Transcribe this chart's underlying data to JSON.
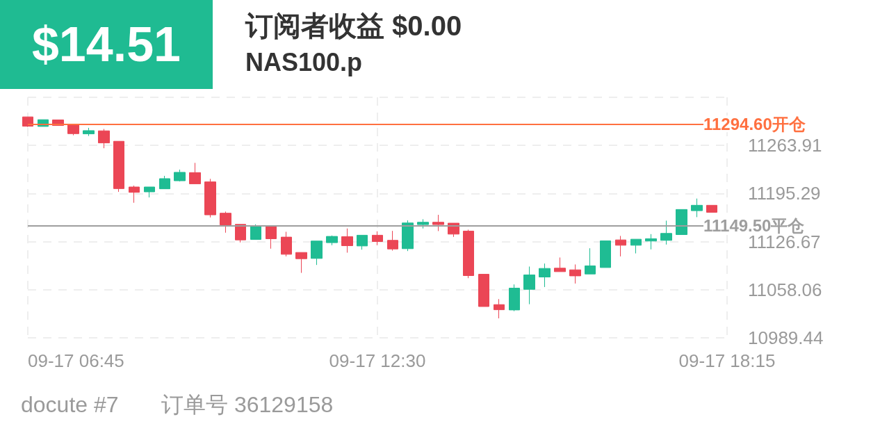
{
  "chart_data": {
    "type": "candlestick",
    "title": "订阅者收益 $0.00",
    "subtitle": "NAS100.p",
    "annotations": [
      "$14.51",
      "docute #7",
      "订单号 36129158"
    ],
    "x": [
      "--09-17T06:45",
      "--09-17T07:00",
      "--09-17T07:15",
      "--09-17T07:30",
      "--09-17T07:45",
      "--09-17T08:00",
      "--09-17T08:15",
      "--09-17T08:30",
      "--09-17T08:45",
      "--09-17T09:00",
      "--09-17T09:15",
      "--09-17T09:30",
      "--09-17T09:45",
      "--09-17T10:00",
      "--09-17T10:15",
      "--09-17T10:30",
      "--09-17T10:45",
      "--09-17T11:00",
      "--09-17T11:15",
      "--09-17T11:30",
      "--09-17T11:45",
      "--09-17T12:00",
      "--09-17T12:15",
      "--09-17T12:30",
      "--09-17T12:45",
      "--09-17T13:00",
      "--09-17T13:15",
      "--09-17T13:30",
      "--09-17T13:45",
      "--09-17T14:00",
      "--09-17T14:15",
      "--09-17T14:30",
      "--09-17T14:45",
      "--09-17T15:00",
      "--09-17T15:15",
      "--09-17T15:30",
      "--09-17T15:45",
      "--09-17T16:00",
      "--09-17T16:15",
      "--09-17T16:30",
      "--09-17T16:45",
      "--09-17T17:00",
      "--09-17T17:15",
      "--09-17T17:30",
      "--09-17T17:45",
      "--09-17T18:00"
    ],
    "ohlc": [
      [
        11304.6,
        11304.6,
        11290.3,
        11291.3
      ],
      [
        11291.0,
        11300.6,
        11291.0,
        11300.6
      ],
      [
        11300.3,
        11300.3,
        11292.3,
        11292.3
      ],
      [
        11293.6,
        11293.6,
        11278.4,
        11280.7
      ],
      [
        11280.4,
        11289.0,
        11277.4,
        11285.0
      ],
      [
        11284.7,
        11287.4,
        11259.9,
        11267.5
      ],
      [
        11269.8,
        11269.8,
        11197.7,
        11202.3
      ],
      [
        11204.6,
        11206.6,
        11182.1,
        11197.0
      ],
      [
        11197.7,
        11204.6,
        11189.7,
        11204.6
      ],
      [
        11202.0,
        11220.5,
        11202.0,
        11216.5
      ],
      [
        11213.5,
        11229.4,
        11212.5,
        11225.5
      ],
      [
        11225.1,
        11239.0,
        11209.2,
        11209.2
      ],
      [
        11211.9,
        11216.2,
        11161.2,
        11164.9
      ],
      [
        11167.2,
        11169.5,
        11139.4,
        11150.6
      ],
      [
        11151.3,
        11151.3,
        11125.5,
        11129.1
      ],
      [
        11129.8,
        11151.3,
        11129.8,
        11148.0
      ],
      [
        11148.0,
        11148.0,
        11116.6,
        11130.8
      ],
      [
        11133.1,
        11140.7,
        11105.6,
        11108.6
      ],
      [
        11111.2,
        11111.2,
        11082.1,
        11102.3
      ],
      [
        11102.7,
        11127.5,
        11093.4,
        11127.5
      ],
      [
        11125.2,
        11135.4,
        11121.5,
        11134.1
      ],
      [
        11133.8,
        11145.4,
        11110.9,
        11120.9
      ],
      [
        11120.5,
        11135.8,
        11115.2,
        11135.8
      ],
      [
        11135.8,
        11141.4,
        11121.5,
        11126.8
      ],
      [
        11128.5,
        11142.0,
        11113.9,
        11116.2
      ],
      [
        11116.6,
        11157.0,
        11113.2,
        11153.3
      ],
      [
        11151.0,
        11158.6,
        11145.4,
        11154.3
      ],
      [
        11154.3,
        11164.9,
        11141.7,
        11151.0
      ],
      [
        11153.0,
        11153.0,
        11133.4,
        11137.4
      ],
      [
        11141.7,
        11143.7,
        11074.5,
        11078.2
      ],
      [
        11080.1,
        11080.1,
        11034.1,
        11034.1
      ],
      [
        11036.8,
        11044.7,
        11017.2,
        11029.5
      ],
      [
        11029.2,
        11065.6,
        11027.5,
        11060.3
      ],
      [
        11058.6,
        11091.1,
        11037.4,
        11079.2
      ],
      [
        11076.2,
        11095.4,
        11061.9,
        11088.4
      ],
      [
        11088.8,
        11104.0,
        11083.8,
        11083.8
      ],
      [
        11086.4,
        11094.1,
        11066.9,
        11077.8
      ],
      [
        11080.5,
        11117.2,
        11080.5,
        11092.1
      ],
      [
        11089.7,
        11127.8,
        11089.7,
        11127.8
      ],
      [
        11129.1,
        11134.8,
        11105.6,
        11121.5
      ],
      [
        11121.5,
        11130.1,
        11109.9,
        11130.1
      ],
      [
        11127.5,
        11137.4,
        11115.6,
        11130.8
      ],
      [
        11128.5,
        11156.6,
        11122.5,
        11138.4
      ],
      [
        11136.7,
        11172.5,
        11136.7,
        11172.5
      ],
      [
        11170.8,
        11188.1,
        11161.6,
        11178.5
      ],
      [
        11178.5,
        11178.5,
        11168.5,
        11168.5
      ]
    ],
    "colors": [
      "#eb4655",
      "#1fbc93",
      "#eb4655",
      "#eb4655",
      "#1fbc93",
      "#eb4655",
      "#eb4655",
      "#eb4655",
      "#1fbc93",
      "#1fbc93",
      "#1fbc93",
      "#eb4655",
      "#eb4655",
      "#eb4655",
      "#eb4655",
      "#1fbc93",
      "#eb4655",
      "#eb4655",
      "#eb4655",
      "#1fbc93",
      "#1fbc93",
      "#eb4655",
      "#1fbc93",
      "#eb4655",
      "#eb4655",
      "#1fbc93",
      "#1fbc93",
      "#eb4655",
      "#eb4655",
      "#eb4655",
      "#eb4655",
      "#eb4655",
      "#1fbc93",
      "#1fbc93",
      "#1fbc93",
      "#eb4655",
      "#eb4655",
      "#1fbc93",
      "#1fbc93",
      "#eb4655",
      "#1fbc93",
      "#1fbc93",
      "#1fbc93",
      "#1fbc93",
      "#1fbc93",
      "#eb4655"
    ],
    "xlim": [
      "--09-17T06:45",
      "--09-17T18:15"
    ],
    "xticks": [
      {
        "value": "--09-17T06:45",
        "label": "09-17 06:45"
      },
      {
        "value": "--09-17T12:30",
        "label": "09-17 12:30"
      },
      {
        "value": "--09-17T18:15",
        "label": "09-17 18:15"
      }
    ],
    "ylim": [
      10989.44,
      11332.53
    ],
    "yticks": [
      10989.44,
      11058.06,
      11126.67,
      11195.29,
      11263.91,
      {
        "value": 11332.53,
        "label": null
      }
    ],
    "ref_lines": [
      {
        "axis": "y",
        "value": 11294.6,
        "label": "11294.60开仓",
        "color": "#ff7040"
      },
      {
        "axis": "y",
        "value": 11149.5,
        "label": "11149.50平仓",
        "color": "#9e9e9e"
      }
    ],
    "grid": true
  }
}
